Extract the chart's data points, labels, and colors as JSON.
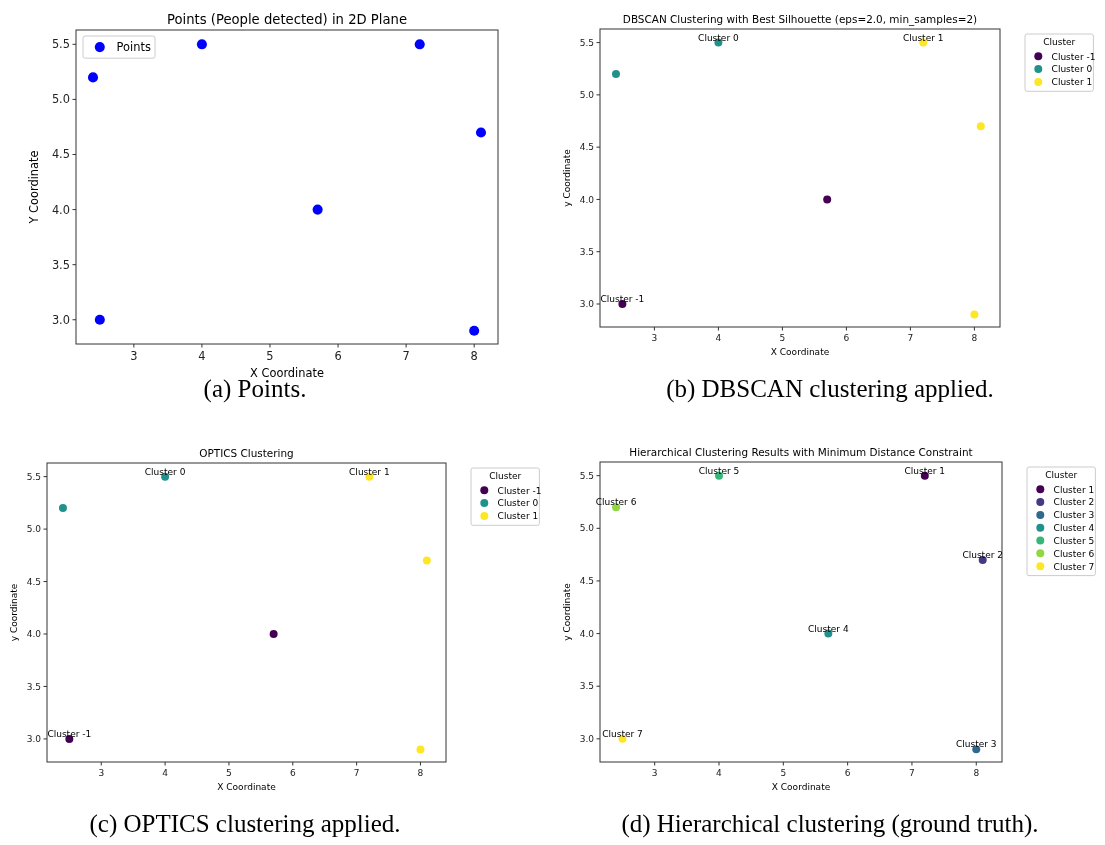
{
  "chart_data": [
    {
      "type": "scatter",
      "title": "Points (People detected) in 2D Plane",
      "xlabel": "X Coordinate",
      "ylabel": "Y Coordinate",
      "xlim": [
        2.15,
        8.35
      ],
      "ylim": [
        2.78,
        5.63
      ],
      "xticks": [
        3,
        4,
        5,
        6,
        7,
        8
      ],
      "yticks": [
        {
          "value": 3,
          "label": "3.0"
        },
        {
          "value": 3.5,
          "label": "3.5"
        },
        {
          "value": 4,
          "label": "4.0"
        },
        {
          "value": 4.5,
          "label": "4.5"
        },
        {
          "value": 5,
          "label": "5.0"
        },
        {
          "value": 5.5,
          "label": "5.5"
        }
      ],
      "marker": "circle",
      "legend": "top left",
      "grid": false,
      "series": [
        {
          "name": "Points",
          "color": "#0000ff",
          "x": [
            2.4,
            2.5,
            4.0,
            5.7,
            7.2,
            8.1,
            8.0
          ],
          "values": [
            5.2,
            3.0,
            5.5,
            4.0,
            5.5,
            4.7,
            2.9
          ]
        }
      ],
      "annotations": [
        "(a) Points."
      ]
    },
    {
      "type": "scatter",
      "title": "DBSCAN Clustering with Best Silhouette (eps=2.0, min_samples=2)",
      "xlabel": "X Coordinate",
      "ylabel": "y Coordinate",
      "legend_title": "Cluster",
      "xlim": [
        2.15,
        8.4
      ],
      "ylim": [
        2.78,
        5.63
      ],
      "xticks": [
        3,
        4,
        5,
        6,
        7,
        8
      ],
      "yticks": [
        {
          "value": 3,
          "label": "3.0"
        },
        {
          "value": 3.5,
          "label": "3.5"
        },
        {
          "value": 4,
          "label": "4.0"
        },
        {
          "value": 4.5,
          "label": "4.5"
        },
        {
          "value": 5,
          "label": "5.0"
        },
        {
          "value": 5.5,
          "label": "5.5"
        }
      ],
      "marker": "circle",
      "legend": "right",
      "grid": false,
      "series": [
        {
          "name": "Cluster -1",
          "color": "#440154",
          "x": [
            2.5,
            5.7
          ],
          "values": [
            3.0,
            4.0
          ]
        },
        {
          "name": "Cluster 0",
          "color": "#21918c",
          "x": [
            2.4,
            4.0
          ],
          "values": [
            5.2,
            5.5
          ]
        },
        {
          "name": "Cluster 1",
          "color": "#fde725",
          "x": [
            7.2,
            8.1,
            8.0
          ],
          "values": [
            5.5,
            4.7,
            2.9
          ]
        }
      ],
      "annotations": [
        {
          "text": "Cluster -1",
          "x": 2.5,
          "y": 3.0
        },
        {
          "text": "Cluster 0",
          "x": 4.0,
          "y": 5.5
        },
        {
          "text": "Cluster 1",
          "x": 7.2,
          "y": 5.5
        },
        "(b) DBSCAN clustering applied."
      ]
    },
    {
      "type": "scatter",
      "title": "OPTICS Clustering",
      "xlabel": "X Coordinate",
      "ylabel": "y Coordinate",
      "legend_title": "Cluster",
      "xlim": [
        2.15,
        8.4
      ],
      "ylim": [
        2.78,
        5.63
      ],
      "xticks": [
        3,
        4,
        5,
        6,
        7,
        8
      ],
      "yticks": [
        {
          "value": 3,
          "label": "3.0"
        },
        {
          "value": 3.5,
          "label": "3.5"
        },
        {
          "value": 4,
          "label": "4.0"
        },
        {
          "value": 4.5,
          "label": "4.5"
        },
        {
          "value": 5,
          "label": "5.0"
        },
        {
          "value": 5.5,
          "label": "5.5"
        }
      ],
      "marker": "circle",
      "legend": "right",
      "grid": false,
      "series": [
        {
          "name": "Cluster -1",
          "color": "#440154",
          "x": [
            2.5,
            5.7
          ],
          "values": [
            3.0,
            4.0
          ]
        },
        {
          "name": "Cluster 0",
          "color": "#21918c",
          "x": [
            2.4,
            4.0
          ],
          "values": [
            5.2,
            5.5
          ]
        },
        {
          "name": "Cluster 1",
          "color": "#fde725",
          "x": [
            7.2,
            8.1,
            8.0
          ],
          "values": [
            5.5,
            4.7,
            2.9
          ]
        }
      ],
      "annotations": [
        {
          "text": "Cluster -1",
          "x": 2.5,
          "y": 3.0
        },
        {
          "text": "Cluster 0",
          "x": 4.0,
          "y": 5.5
        },
        {
          "text": "Cluster 1",
          "x": 7.2,
          "y": 5.5
        },
        "(c) OPTICS clustering applied."
      ]
    },
    {
      "type": "scatter",
      "title": "Hierarchical Clustering Results with Minimum Distance Constraint",
      "xlabel": "X Coordinate",
      "ylabel": "y Coordinate",
      "legend_title": "Cluster",
      "xlim": [
        2.15,
        8.4
      ],
      "ylim": [
        2.78,
        5.63
      ],
      "xticks": [
        3,
        4,
        5,
        6,
        7,
        8
      ],
      "yticks": [
        {
          "value": 3,
          "label": "3.0"
        },
        {
          "value": 3.5,
          "label": "3.5"
        },
        {
          "value": 4,
          "label": "4.0"
        },
        {
          "value": 4.5,
          "label": "4.5"
        },
        {
          "value": 5,
          "label": "5.0"
        },
        {
          "value": 5.5,
          "label": "5.5"
        }
      ],
      "marker": "circle",
      "legend": "right",
      "grid": false,
      "series": [
        {
          "name": "Cluster 1",
          "color": "#440154",
          "x": [
            7.2
          ],
          "values": [
            5.5
          ]
        },
        {
          "name": "Cluster 2",
          "color": "#443983",
          "x": [
            8.1
          ],
          "values": [
            4.7
          ]
        },
        {
          "name": "Cluster 3",
          "color": "#31688e",
          "x": [
            8.0
          ],
          "values": [
            2.9
          ]
        },
        {
          "name": "Cluster 4",
          "color": "#21918c",
          "x": [
            5.7
          ],
          "values": [
            4.0
          ]
        },
        {
          "name": "Cluster 5",
          "color": "#35b779",
          "x": [
            4.0
          ],
          "values": [
            5.5
          ]
        },
        {
          "name": "Cluster 6",
          "color": "#90d743",
          "x": [
            2.4
          ],
          "values": [
            5.2
          ]
        },
        {
          "name": "Cluster 7",
          "color": "#fde725",
          "x": [
            2.5
          ],
          "values": [
            3.0
          ]
        }
      ],
      "annotations": [
        {
          "text": "Cluster 1",
          "x": 7.2,
          "y": 5.5
        },
        {
          "text": "Cluster 2",
          "x": 8.1,
          "y": 4.7
        },
        {
          "text": "Cluster 3",
          "x": 8.0,
          "y": 2.9
        },
        {
          "text": "Cluster 4",
          "x": 5.7,
          "y": 4.0
        },
        {
          "text": "Cluster 5",
          "x": 4.0,
          "y": 5.5
        },
        {
          "text": "Cluster 6",
          "x": 2.4,
          "y": 5.2
        },
        {
          "text": "Cluster 7",
          "x": 2.5,
          "y": 3.0
        },
        "(d) Hierarchical clustering (ground truth)."
      ]
    }
  ]
}
